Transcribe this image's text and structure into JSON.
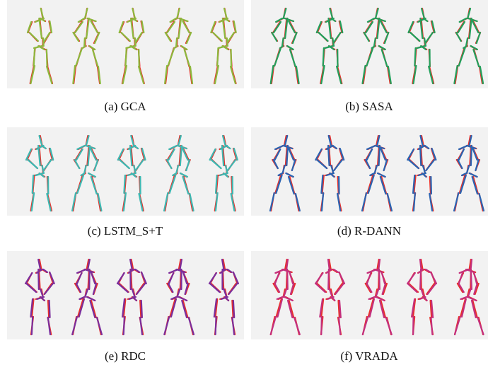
{
  "figure": {
    "panels": [
      {
        "caption": "(a) GCA"
      },
      {
        "caption": "(b) SASA"
      },
      {
        "caption": "(c) LSTM_S+T"
      },
      {
        "caption": "(d) R-DANN"
      },
      {
        "caption": "(e) RDC"
      },
      {
        "caption": "(f) VRADA"
      }
    ]
  }
}
